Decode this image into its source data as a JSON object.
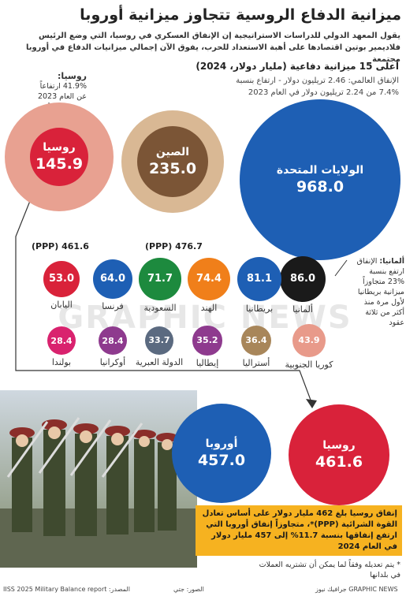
{
  "header": {
    "title": "ميزانية الدفاع الروسية تتجاوز ميزانية أوروبا",
    "intro": "يقول المعهد الدولي للدراسات الاستراتيجية إن الإنفاق العسكري في روسيا، التي وضع الرئيس فلاديمير بوتين اقتصادها على أهبة الاستعداد للحرب، يفوق الآن إجمالي ميزانيات الدفاع في أوروبا مجتمعة"
  },
  "top15": {
    "title": "أعلى 15 ميزانية دفاعية (مليار دولار، 2024)",
    "line1": "الإنفاق العالمي: 2.46 تريليون دولار - ارتفاع بنسبة",
    "line2": "7.4% من 2.24 تريليون دولار في العام 2023"
  },
  "russia_note": {
    "heading": "روسيا:",
    "line1": "41.9% ارتفاعاً",
    "line2": "عن العام 2023"
  },
  "germany_note": {
    "heading": "ألمانيا:",
    "text1": "الإنفاق",
    "text2": "ارتفع بنسبة",
    "text3": "23% متجاوزاً",
    "text4": "ميزانية بريطانيا",
    "text5": "لأول مرة منذ",
    "text6": "أكثر من ثلاثة",
    "text7": "عقود"
  },
  "ppp": {
    "russia": "(PPP) 461.6",
    "china": "(PPP) 476.7"
  },
  "yellow_note": {
    "text": "إنفاق روسيا بلغ 462 مليار دولار على أساس تعادل القوة الشرائية (PPP)*، متجاوزاً إنفاق أوروبا التي ارتفع إنفاقها بنسبة 11.7% إلى 457 مليار دولار في العام 2024"
  },
  "footnote": {
    "line1": "* يتم تعديله وفقاً لما يمكن أن تشتريه العملات",
    "line2": "في بلدانها"
  },
  "footer": {
    "source": "المصدر: IISS 2025 Military Balance report",
    "photo": "الصور: جتي",
    "credit": "جرافيك نيوز GRAPHIC NEWS"
  },
  "watermark": "GRAPHIC NEWS",
  "colors": {
    "usa": "#1e5fb4",
    "china_outer": "#d9b894",
    "china_inner": "#7b5536",
    "russia_outer": "#e8a191",
    "russia_inner": "#d9223a",
    "europe": "#1e5fb4",
    "russia_bottom": "#d9223a",
    "yellow": "#f6b220"
  },
  "chart_data": {
    "type": "bubble",
    "title": "أعلى 15 ميزانية دفاعية (مليار دولار، 2024)",
    "unit": "مليار دولار",
    "items": [
      {
        "name": "الولايات المتحدة",
        "value": 968.0,
        "color": "#1e5fb4"
      },
      {
        "name": "الصين",
        "value": 235.0,
        "color": "#7b5536"
      },
      {
        "name": "روسيا",
        "value": 145.9,
        "color": "#d9223a"
      },
      {
        "name": "ألمانيا",
        "value": 86.0,
        "color": "#1a1a1a"
      },
      {
        "name": "بريطانيا",
        "value": 81.1,
        "color": "#1e5fb4"
      },
      {
        "name": "الهند",
        "value": 74.4,
        "color": "#f07f1a"
      },
      {
        "name": "السعودية",
        "value": 71.7,
        "color": "#1d8a3e"
      },
      {
        "name": "فرنسا",
        "value": 64.0,
        "color": "#1e5fb4"
      },
      {
        "name": "اليابان",
        "value": 53.0,
        "color": "#d9223a"
      },
      {
        "name": "كوريا الجنوبية",
        "value": 43.9,
        "color": "#e89a8a"
      },
      {
        "name": "أستراليا",
        "value": 36.4,
        "color": "#a8865a"
      },
      {
        "name": "إيطاليا",
        "value": 35.2,
        "color": "#8e3a8e"
      },
      {
        "name": "الدولة العبرية",
        "value": 33.7,
        "color": "#5b6a80"
      },
      {
        "name": "أوكرانيا",
        "value": 28.4,
        "color": "#8e3a8e"
      },
      {
        "name": "بولندا",
        "value": 28.4,
        "color": "#d9226e"
      }
    ],
    "ppp_comparison": [
      {
        "name": "أوروبا",
        "value": 457.0
      },
      {
        "name": "روسيا",
        "value": 461.6
      }
    ]
  }
}
